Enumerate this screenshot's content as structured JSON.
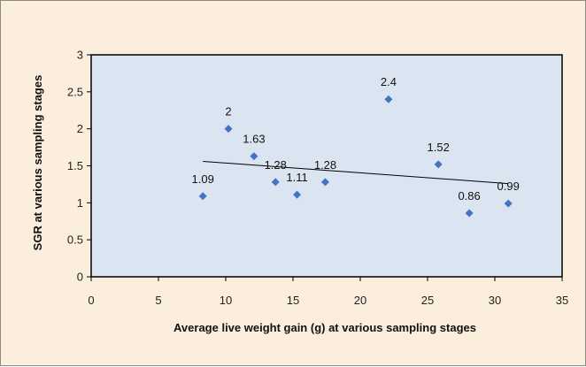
{
  "chart_data": {
    "type": "scatter",
    "title": "",
    "xlabel": "Average live weight gain (g) at various sampling stages",
    "ylabel": "SGR at various sampling stages",
    "xlim": [
      0,
      35
    ],
    "ylim": [
      0,
      3
    ],
    "xticks": [
      0,
      5,
      10,
      15,
      20,
      25,
      30,
      35
    ],
    "yticks": [
      0,
      0.5,
      1,
      1.5,
      2,
      2.5,
      3
    ],
    "ytick_labels": [
      "0",
      "0.5",
      "1",
      "1.5",
      "2",
      "2.5",
      "3"
    ],
    "grid": false,
    "legend": "none",
    "marker": "diamond",
    "colors": {
      "marker": "#4472c4",
      "plot_area": "#dbe5f1",
      "chart_background": "#fbeedd",
      "trendline": "#000000"
    },
    "points": [
      {
        "x": 8.3,
        "y": 1.09,
        "label": "1.09"
      },
      {
        "x": 10.2,
        "y": 2.0,
        "label": "2"
      },
      {
        "x": 12.1,
        "y": 1.63,
        "label": "1.63"
      },
      {
        "x": 13.7,
        "y": 1.28,
        "label": "1.28"
      },
      {
        "x": 15.3,
        "y": 1.11,
        "label": "1.11"
      },
      {
        "x": 17.4,
        "y": 1.28,
        "label": "1.28"
      },
      {
        "x": 22.1,
        "y": 2.4,
        "label": "2.4"
      },
      {
        "x": 25.8,
        "y": 1.52,
        "label": "1.52"
      },
      {
        "x": 28.1,
        "y": 0.86,
        "label": "0.86"
      },
      {
        "x": 31.0,
        "y": 0.99,
        "label": "0.99"
      }
    ],
    "trendline": {
      "type": "linear",
      "x": [
        8.3,
        31.0
      ],
      "y": [
        1.56,
        1.26
      ]
    }
  }
}
